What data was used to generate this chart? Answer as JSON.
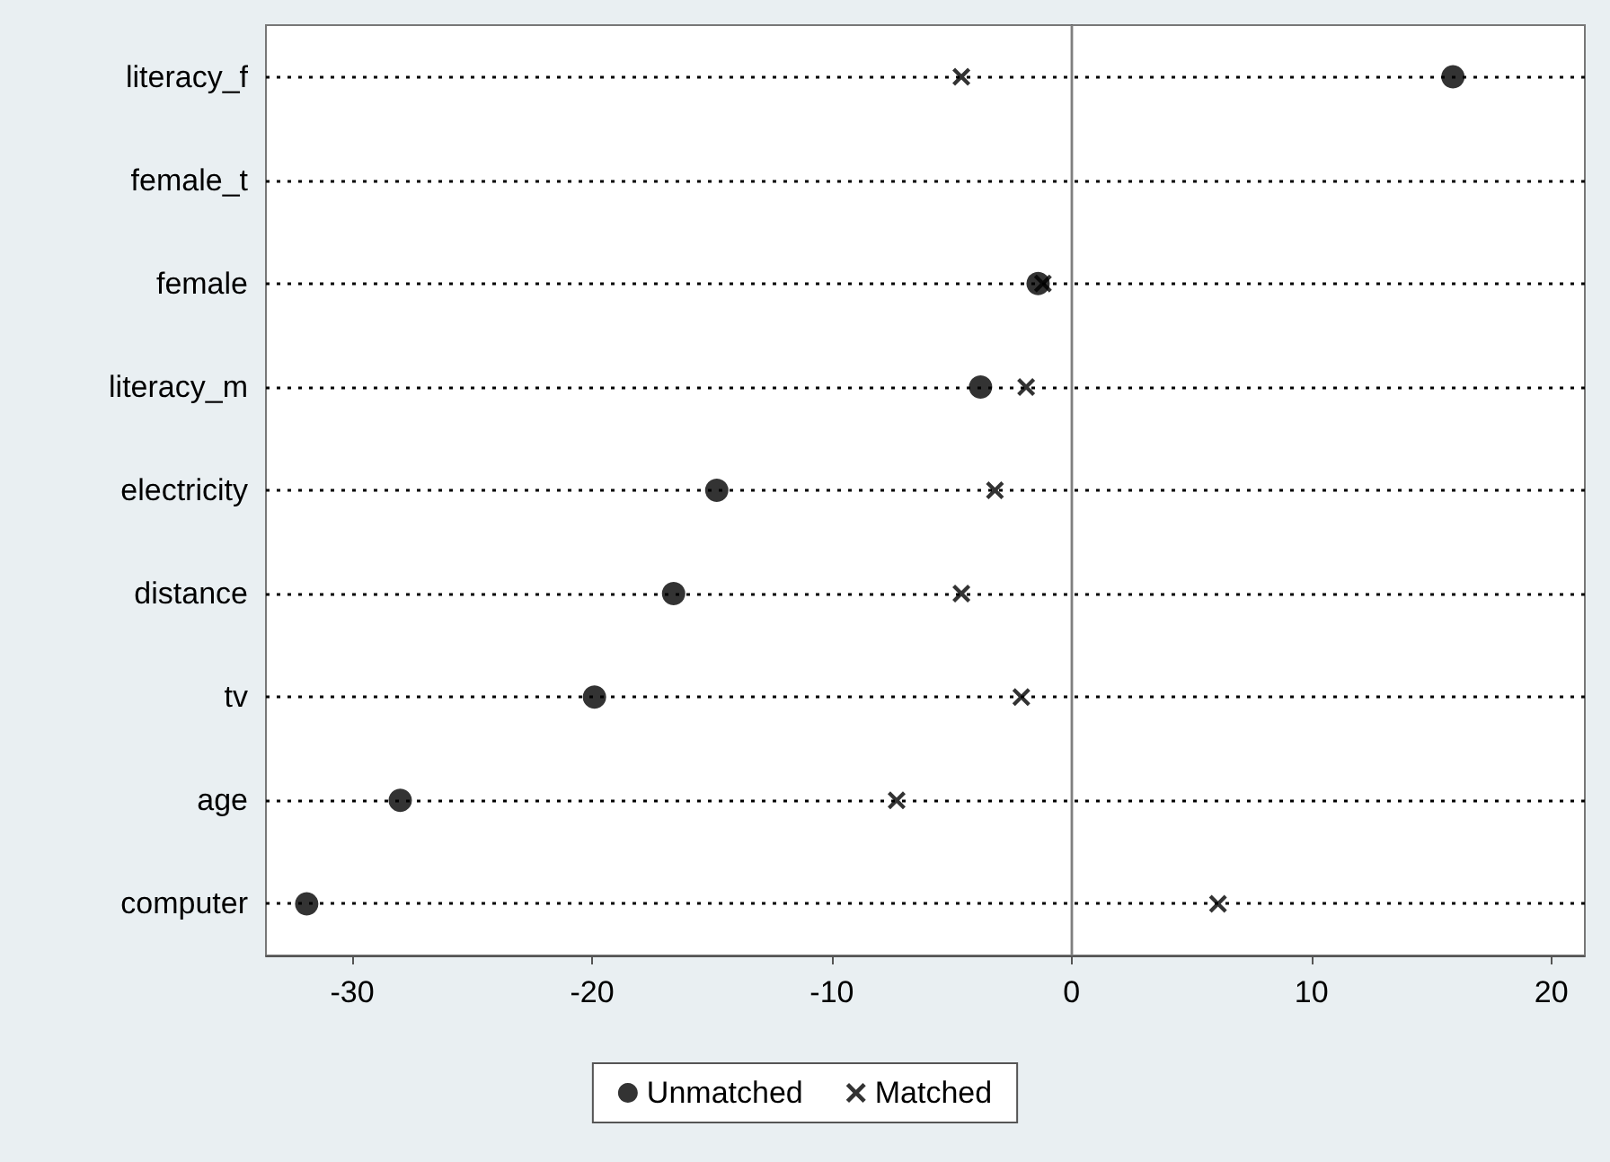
{
  "chart_data": {
    "type": "scatter",
    "orientation": "horizontal",
    "categories": [
      "literacy_f",
      "female_t",
      "female",
      "literacy_m",
      "electricity",
      "distance",
      "tv",
      "age",
      "computer"
    ],
    "series": [
      {
        "name": "Unmatched",
        "color": "#000000",
        "marker": "circle",
        "values": [
          15.9,
          null,
          -1.4,
          -3.8,
          -14.8,
          -16.6,
          -19.9,
          -28.0,
          -31.9
        ]
      },
      {
        "name": "Matched",
        "color": "#000000",
        "marker": "cross",
        "values": [
          -4.6,
          null,
          -1.2,
          -1.9,
          -3.2,
          -4.6,
          -2.1,
          -7.3,
          6.1
        ]
      }
    ],
    "xlim": [
      -33.6,
      21.4
    ],
    "xticks": [
      -30,
      -20,
      -10,
      0,
      10,
      20
    ],
    "grid": "y",
    "legend": "bottom",
    "ref_lines": [
      {
        "axis": "x",
        "value": 0,
        "color": "#7f7f7f"
      }
    ]
  }
}
